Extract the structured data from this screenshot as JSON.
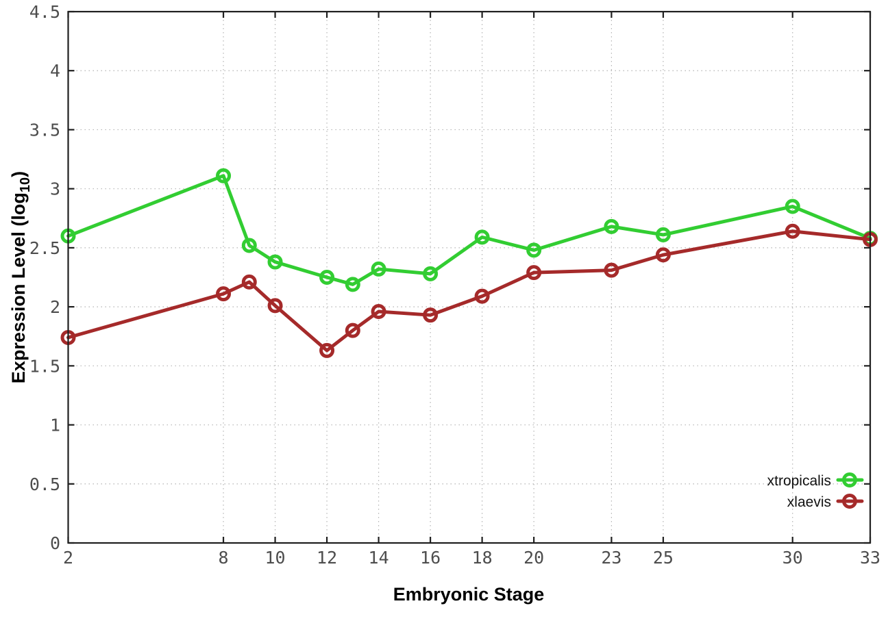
{
  "chart_data": {
    "type": "line",
    "xlabel": "Embryonic Stage",
    "ylabel": {
      "main": "Expression Level (log",
      "sub": "10",
      "end": ")"
    },
    "x": [
      2,
      8,
      9,
      10,
      12,
      13,
      14,
      16,
      18,
      20,
      23,
      25,
      30,
      33
    ],
    "series": [
      {
        "name": "xtropicalis",
        "color": "#32CD32",
        "marker": "open-circle",
        "values": [
          2.6,
          3.11,
          2.52,
          2.38,
          2.25,
          2.19,
          2.32,
          2.28,
          2.59,
          2.48,
          2.68,
          2.61,
          2.85,
          2.58
        ]
      },
      {
        "name": "xlaevis",
        "color": "#A52A2A",
        "marker": "open-circle",
        "values": [
          1.74,
          2.11,
          2.21,
          2.01,
          1.63,
          1.8,
          1.96,
          1.93,
          2.09,
          2.29,
          2.31,
          2.44,
          2.64,
          2.57
        ]
      }
    ],
    "xticks": [
      2,
      8,
      10,
      12,
      14,
      16,
      18,
      20,
      23,
      25,
      30,
      33
    ],
    "yticks": [
      0,
      0.5,
      1,
      1.5,
      2,
      2.5,
      3,
      3.5,
      4,
      4.5
    ],
    "xlim": [
      2,
      33
    ],
    "ylim": [
      0,
      4.5
    ],
    "grid": true,
    "legend": {
      "position": "bottom-right",
      "entries": [
        "xtropicalis",
        "xlaevis"
      ]
    },
    "colors": {
      "background": "#ffffff",
      "grid": "#b3b3b3",
      "axis": "#1f1f1f",
      "tick_labels": "#4d4d4d",
      "titles": "#000000"
    }
  }
}
